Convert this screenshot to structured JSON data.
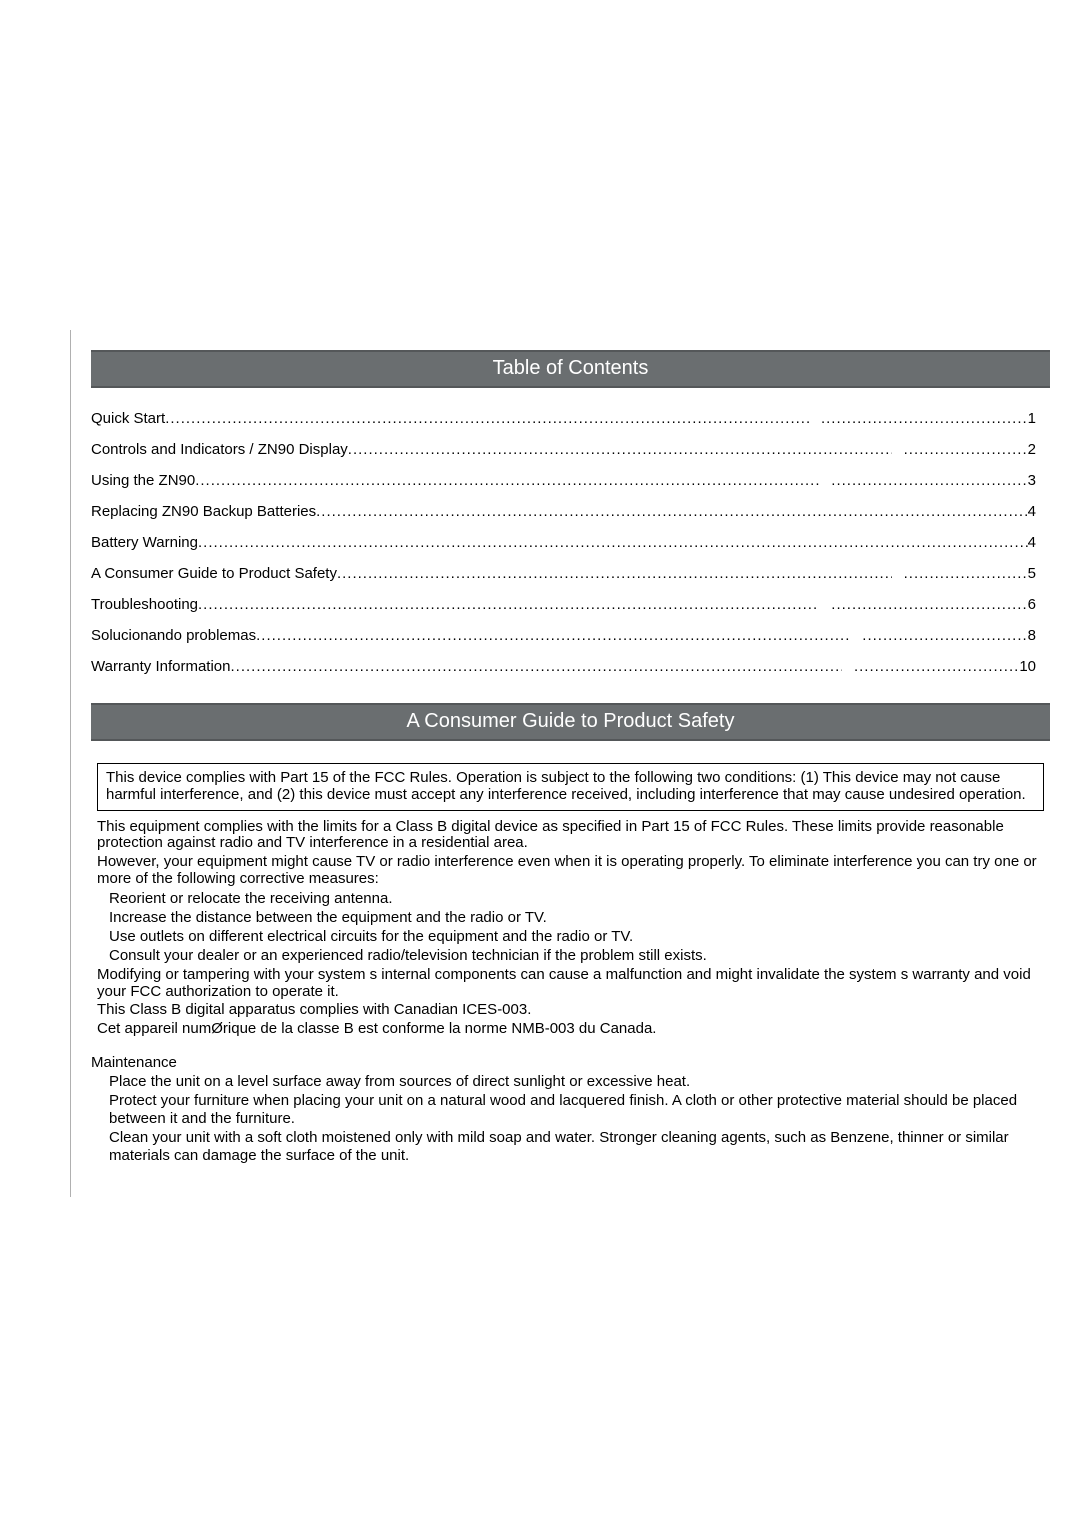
{
  "colors": {
    "header_bg": "#6a6e70",
    "header_border": "#545759",
    "header_text": "#ffffff",
    "page_border": "#b0b0b0",
    "text": "#000000",
    "background": "#ffffff"
  },
  "typography": {
    "body_font_family": "Arial, Helvetica, sans-serif",
    "body_font_size_pt": 11,
    "header_font_size_pt": 15
  },
  "sections": {
    "toc_title": "Table of Contents",
    "safety_title": "A Consumer Guide to Product Safety"
  },
  "toc": [
    {
      "label": "Quick Start",
      "page": "1",
      "split": true,
      "dots2_len": 40
    },
    {
      "label": "Controls and Indicators / ZN90 Display",
      "page": "2",
      "split": true,
      "dots2_len": 24
    },
    {
      "label": "Using the ZN90",
      "page": "3",
      "split": true,
      "dots2_len": 38
    },
    {
      "label": "Replacing ZN90 Backup Batteries",
      "page": "4",
      "split": false
    },
    {
      "label": "Battery Warning",
      "page": "4",
      "split": false
    },
    {
      "label": "A Consumer Guide to Product Safety",
      "page": "5",
      "split": true,
      "dots2_len": 24
    },
    {
      "label": "Troubleshooting",
      "page": "6",
      "split": true,
      "dots2_len": 38
    },
    {
      "label": "Solucionando problemas",
      "page": "8",
      "split": true,
      "dots2_len": 32
    },
    {
      "label": "Warranty Information",
      "page": "10",
      "split": true,
      "dots2_len": 32
    }
  ],
  "safety": {
    "fcc_box": "This device complies with Part 15 of the FCC Rules. Operation is subject to the following two conditions: (1) This device may not cause harmful interference, and (2) this device must accept any interference received, including interference that may cause undesired operation.",
    "para1": "This equipment complies with the limits for a Class B digital device as specified in Part 15 of FCC Rules. These limits provide reasonable protection against radio and TV interference in a residential area.",
    "para2": "However, your equipment might cause TV or radio interference even when it is operating properly.  To eliminate interference you can try one or more of the following corrective measures:",
    "bullets": [
      "Reorient or relocate the receiving antenna.",
      "Increase the distance between the equipment and the radio or TV.",
      "Use outlets on different electrical circuits for the equipment and the radio or TV.",
      "Consult your dealer or an experienced radio/television technician if the problem still exists."
    ],
    "para3": "Modifying or tampering with your system s internal components can cause a malfunction and might invalidate the system s warranty and void your FCC authorization to operate it.",
    "para4": "This Class B digital apparatus complies with Canadian ICES-003.",
    "para5": "Cet appareil numØrique de la classe B est conforme   la norme NMB-003 du Canada.",
    "maintenance_heading": "Maintenance",
    "maintenance": [
      "Place the unit on a level surface away from sources of direct sunlight or excessive heat.",
      "Protect your furniture when placing your unit on a natural wood and lacquered finish. A cloth or other protective material should be placed between it and the furniture.",
      "Clean your unit with a soft cloth moistened only with mild soap and water. Stronger cleaning agents, such as Benzene, thinner or similar materials can damage the surface of the unit."
    ]
  }
}
